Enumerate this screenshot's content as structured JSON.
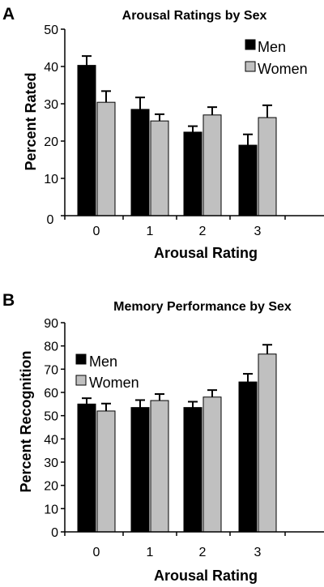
{
  "colors": {
    "men": "#000000",
    "women": "#c0c0c0",
    "axis": "#000000",
    "error": "#000000"
  },
  "chart_data": [
    {
      "panel": "A",
      "type": "bar",
      "title": "Arousal Ratings by Sex",
      "xlabel": "Arousal Rating",
      "ylabel": "Percent Rated",
      "categories": [
        "0",
        "1",
        "2",
        "3"
      ],
      "ylim": [
        0,
        50
      ],
      "yticks": [
        "0",
        "10",
        "20",
        "30",
        "40",
        "50"
      ],
      "legend_position": "top-right",
      "series": [
        {
          "name": "Men",
          "values": [
            40.3,
            28.5,
            22.4,
            18.9
          ],
          "errors": [
            2.5,
            3.2,
            1.6,
            2.9
          ]
        },
        {
          "name": "Women",
          "values": [
            30.4,
            25.4,
            27.0,
            26.3
          ],
          "errors": [
            3.0,
            1.8,
            2.1,
            3.3
          ]
        }
      ]
    },
    {
      "panel": "B",
      "type": "bar",
      "title": "Memory Performance by Sex",
      "xlabel": "Arousal Rating",
      "ylabel": "Percent Recognition",
      "categories": [
        "0",
        "1",
        "2",
        "3"
      ],
      "ylim": [
        0,
        90
      ],
      "yticks": [
        "0",
        "10",
        "20",
        "30",
        "40",
        "50",
        "60",
        "70",
        "80",
        "90"
      ],
      "legend_position": "top-left",
      "series": [
        {
          "name": "Men",
          "values": [
            55.0,
            53.5,
            53.5,
            64.5
          ],
          "errors": [
            2.5,
            3.2,
            2.5,
            3.5
          ]
        },
        {
          "name": "Women",
          "values": [
            52.0,
            56.5,
            58.0,
            76.5
          ],
          "errors": [
            3.2,
            2.8,
            3.0,
            4.0
          ]
        }
      ]
    }
  ]
}
